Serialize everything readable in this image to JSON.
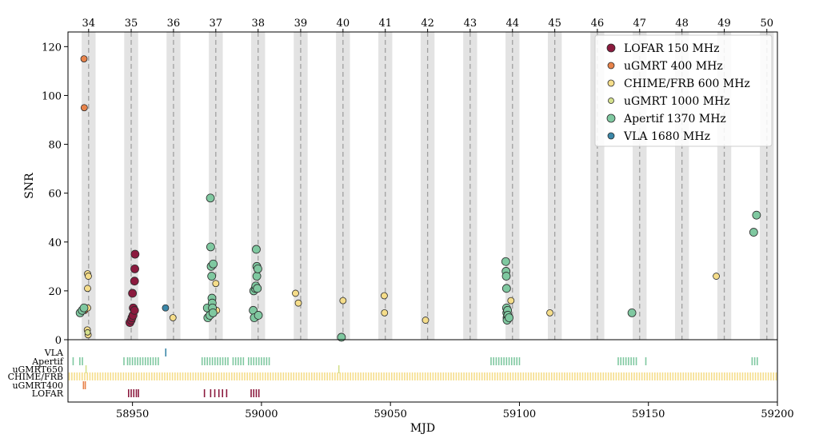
{
  "chart_data": {
    "type": "scatter",
    "xlabel": "MJD",
    "ylabel": "SNR",
    "xlim": [
      58925,
      59200
    ],
    "ylim": [
      0,
      126
    ],
    "x_ticks": [
      58950,
      59000,
      59050,
      59100,
      59150,
      59200
    ],
    "y_ticks": [
      0,
      20,
      40,
      60,
      80,
      100,
      120
    ],
    "grid": false,
    "legend_position": "top-right",
    "cycles": {
      "labels": [
        "34",
        "35",
        "36",
        "37",
        "38",
        "39",
        "40",
        "41",
        "42",
        "43",
        "44",
        "45",
        "46",
        "47",
        "48",
        "49",
        "50"
      ],
      "centers": [
        58933.0,
        58949.5,
        58965.9,
        58982.3,
        58998.7,
        59015.2,
        59031.6,
        59048.0,
        59064.4,
        59080.9,
        59097.3,
        59113.7,
        59130.2,
        59146.6,
        59163.0,
        59179.4,
        59195.9
      ],
      "window_half_width_days": 2.7
    },
    "series": [
      {
        "name": "LOFAR 150 MHz",
        "color": "#8b1a3e",
        "points": [
          [
            58949.0,
            7
          ],
          [
            58949.5,
            8
          ],
          [
            58949.8,
            9
          ],
          [
            58950.2,
            10
          ],
          [
            58950.0,
            19
          ],
          [
            58950.3,
            13
          ],
          [
            58950.8,
            12
          ],
          [
            58950.8,
            24
          ],
          [
            58950.9,
            29
          ],
          [
            58951.0,
            35
          ]
        ]
      },
      {
        "name": "uGMRT 400 MHz",
        "color": "#e8834a",
        "points": [
          [
            58931.2,
            115
          ],
          [
            58931.3,
            95
          ],
          [
            58931.5,
            12
          ]
        ]
      },
      {
        "name": "CHIME/FRB 600 MHz",
        "color": "#f5dd8a",
        "points": [
          [
            58932.6,
            27
          ],
          [
            58932.6,
            21
          ],
          [
            58932.6,
            13
          ],
          [
            58932.8,
            2
          ],
          [
            58932.5,
            4
          ],
          [
            58932.9,
            26
          ],
          [
            58965.7,
            9
          ],
          [
            58982.3,
            23
          ],
          [
            58982.6,
            12
          ],
          [
            59013.2,
            19
          ],
          [
            59014.3,
            15
          ],
          [
            59031.6,
            16
          ],
          [
            59047.6,
            18
          ],
          [
            59047.7,
            11
          ],
          [
            59063.6,
            8
          ],
          [
            59096.7,
            16
          ],
          [
            59111.8,
            11
          ],
          [
            59176.3,
            26
          ]
        ]
      },
      {
        "name": "uGMRT 1000 MHz",
        "color": "#d4e08c",
        "points": [
          [
            58932.6,
            3
          ]
        ]
      },
      {
        "name": "Apertif 1370 MHz",
        "color": "#7fc8a0",
        "points": [
          [
            58929.7,
            11
          ],
          [
            58930.5,
            12
          ],
          [
            58931.2,
            13
          ],
          [
            58979.0,
            13
          ],
          [
            58979.2,
            9
          ],
          [
            58980.0,
            10
          ],
          [
            58980.2,
            58
          ],
          [
            58980.3,
            38
          ],
          [
            58980.5,
            30
          ],
          [
            58980.7,
            26
          ],
          [
            58980.8,
            17
          ],
          [
            58980.9,
            15
          ],
          [
            58981.0,
            13
          ],
          [
            58981.2,
            11
          ],
          [
            58981.3,
            31
          ],
          [
            58996.8,
            12
          ],
          [
            58997.0,
            20
          ],
          [
            58997.2,
            9
          ],
          [
            58997.6,
            21
          ],
          [
            58997.8,
            22
          ],
          [
            58998.0,
            37
          ],
          [
            58998.2,
            30
          ],
          [
            58998.2,
            26
          ],
          [
            58998.4,
            21
          ],
          [
            58998.6,
            29
          ],
          [
            58998.8,
            10
          ],
          [
            59031.0,
            1
          ],
          [
            59094.7,
            32
          ],
          [
            59094.8,
            28
          ],
          [
            59094.9,
            26
          ],
          [
            59095.0,
            21
          ],
          [
            59095.0,
            13
          ],
          [
            59095.1,
            11
          ],
          [
            59095.2,
            9
          ],
          [
            59095.2,
            8
          ],
          [
            59095.4,
            12
          ],
          [
            59095.5,
            10
          ],
          [
            59096.0,
            9
          ],
          [
            59143.6,
            11
          ],
          [
            59190.8,
            44
          ],
          [
            59191.9,
            51
          ]
        ]
      },
      {
        "name": "VLA 1680 MHz",
        "color": "#3b87a8",
        "points": [
          [
            58962.8,
            13
          ]
        ]
      }
    ],
    "observations": {
      "rows": [
        "VLA",
        "Apertif",
        "uGMRT650",
        "CHIME/FRB",
        "uGMRT400",
        "LOFAR"
      ],
      "VLA": [
        58962.9
      ],
      "Apertif": [
        58927.0,
        58929.6,
        58930.6,
        58946.7,
        58948.1,
        58949.0,
        58950.0,
        58951.0,
        58952.0,
        58953.0,
        58954.0,
        58955.0,
        58956.0,
        58957.0,
        58958.0,
        58959.0,
        58960.0,
        58977.0,
        58978.0,
        58979.0,
        58980.0,
        58981.0,
        58982.0,
        58983.0,
        58984.0,
        58985.0,
        58986.0,
        58987.0,
        58989.0,
        58990.0,
        58991.0,
        58992.0,
        58993.0,
        58995.0,
        58996.0,
        58997.0,
        58998.0,
        58999.0,
        59000.0,
        59001.0,
        59002.0,
        59003.0,
        59089.0,
        59090.0,
        59091.0,
        59092.0,
        59093.0,
        59094.0,
        59095.0,
        59096.0,
        59097.0,
        59098.0,
        59099.0,
        59100.0,
        59138.3,
        59139.3,
        59140.3,
        59141.3,
        59142.3,
        59143.3,
        59144.3,
        59145.3,
        59149.0,
        59190.2,
        59191.2,
        59192.2
      ],
      "uGMRT650": [
        58932.0,
        59030.0
      ],
      "CHIME/FRB": {
        "start": 58925,
        "end": 59200,
        "cadence_days": 1
      },
      "uGMRT400": [
        58931.0,
        58931.7
      ],
      "LOFAR": [
        58948.5,
        58949.5,
        58950.5,
        58951.5,
        58952.3,
        58977.9,
        58980.3,
        58981.9,
        58983.5,
        58984.9,
        58986.5,
        58996.0,
        58997.0,
        58998.0,
        58999.0
      ]
    }
  }
}
